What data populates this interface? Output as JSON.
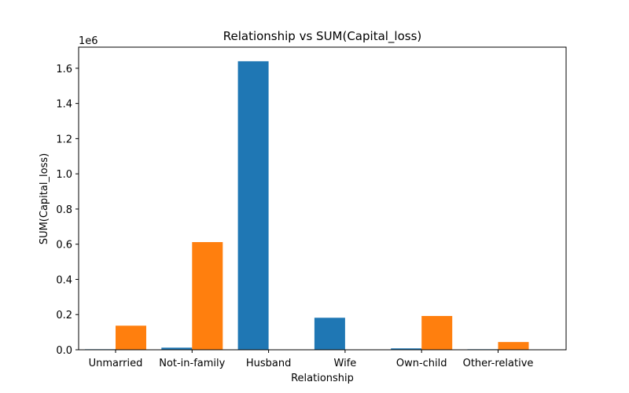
{
  "chart_data": {
    "type": "bar",
    "title": "Relationship vs SUM(Capital_loss)",
    "xlabel": "Relationship",
    "ylabel": "SUM(Capital_loss)",
    "y_offset_text": "1e6",
    "y_multiplier": 1000000,
    "ylim": [
      0,
      1720000
    ],
    "y_ticks": [
      0,
      200000,
      400000,
      600000,
      800000,
      1000000,
      1200000,
      1400000,
      1600000
    ],
    "y_tick_labels": [
      "0.0",
      "0.2",
      "0.4",
      "0.6",
      "0.8",
      "1.0",
      "1.2",
      "1.4",
      "1.6"
    ],
    "grid": false,
    "legend": "none",
    "categories": [
      "Unmarried",
      "Not-in-family",
      "Husband",
      "Wife",
      "Own-child",
      "Other-relative"
    ],
    "series": [
      {
        "color": "#1f77b4",
        "values": [
          3000,
          12000,
          1640000,
          182000,
          8000,
          3000
        ]
      },
      {
        "color": "#ff7f0e",
        "values": [
          137000,
          612000,
          0,
          0,
          192000,
          44000
        ]
      }
    ]
  }
}
